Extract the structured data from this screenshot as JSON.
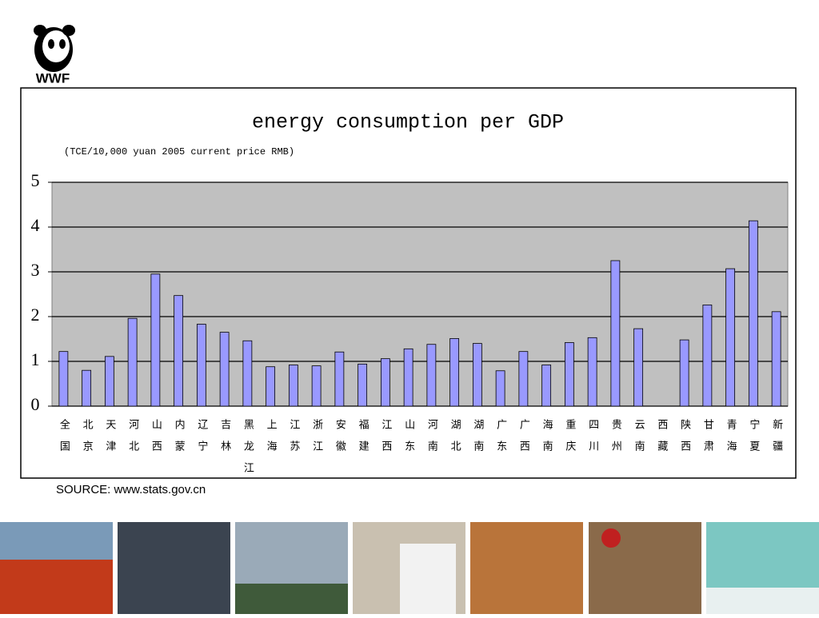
{
  "logo_text": "WWF",
  "source": "SOURCE:  www.stats.gov.cn",
  "chart_data": {
    "type": "bar",
    "title": "energy consumption per GDP",
    "subtitle": "(TCE/10,000 yuan 2005 current price RMB)",
    "categories": [
      "全国",
      "北京",
      "天津",
      "河北",
      "山西",
      "内蒙",
      "辽宁",
      "吉林",
      "黑龙江",
      "上海",
      "江苏",
      "浙江",
      "安徽",
      "福建",
      "江西",
      "山东",
      "河南",
      "湖北",
      "湖南",
      "广东",
      "广西",
      "海南",
      "重庆",
      "四川",
      "贵州",
      "云南",
      "西藏",
      "陕西",
      "甘肃",
      "青海",
      "宁夏",
      "新疆"
    ],
    "values": [
      1.22,
      0.8,
      1.11,
      1.96,
      2.95,
      2.47,
      1.83,
      1.65,
      1.46,
      0.88,
      0.92,
      0.9,
      1.21,
      0.94,
      1.06,
      1.28,
      1.38,
      1.51,
      1.4,
      0.79,
      1.22,
      0.92,
      1.42,
      1.53,
      3.25,
      1.73,
      null,
      1.48,
      2.26,
      3.07,
      4.14,
      2.11
    ],
    "color": "#9999ff",
    "ylim": [
      0,
      5
    ],
    "yticks": [
      0,
      1,
      2,
      3,
      4,
      5
    ],
    "grid": true
  }
}
